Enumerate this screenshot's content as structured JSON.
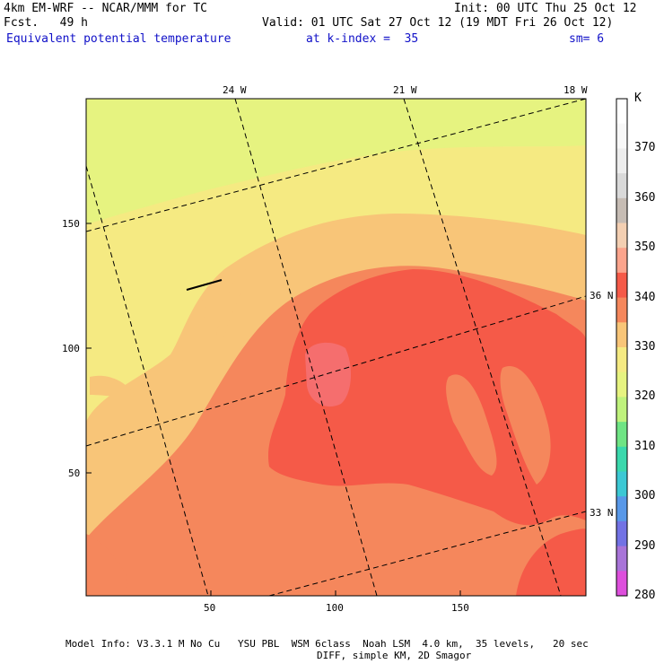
{
  "header": {
    "model_line": "4km EM-WRF -- NCAR/MMM for TC",
    "forecast_line": "Fcst.   49 h",
    "init_line": "Init: 00 UTC Thu 25 Oct 12",
    "valid_line": "Valid: 01 UTC Sat 27 Oct 12 (19 MDT Fri 26 Oct 12)",
    "field_name": "Equivalent potential temperature",
    "level": "at k-index =  35",
    "smoothing": "sm= 6"
  },
  "map": {
    "x_ticks": [
      "50",
      "100",
      "150"
    ],
    "y_ticks": [
      "50",
      "100",
      "150"
    ],
    "longitude_labels": [
      "24 W",
      "21 W",
      "18 W"
    ],
    "latitude_labels": [
      "36 N",
      "33 N"
    ]
  },
  "colorbar": {
    "unit": "K",
    "labels": [
      "370",
      "360",
      "350",
      "340",
      "330",
      "320",
      "310",
      "300",
      "290",
      "280"
    ],
    "colors": [
      "#ffffff",
      "#f8f8f8",
      "#ededed",
      "#d9d9d9",
      "#c6bcb4",
      "#f3cfb2",
      "#fba48c",
      "#f55a48",
      "#f5875c",
      "#f8c578",
      "#f5ea82",
      "#e6f380",
      "#bff27c",
      "#6fe484",
      "#3ad8ac",
      "#3cc8d4",
      "#5898e8",
      "#7272e4",
      "#a874d8",
      "#dd4fdc"
    ]
  },
  "footer": {
    "line1": "Model Info: V3.3.1 M No Cu   YSU PBL  WSM 6class  Noah LSM  4.0 km,  35 levels,   20 sec",
    "line2": "DIFF, simple KM, 2D Smagor"
  }
}
